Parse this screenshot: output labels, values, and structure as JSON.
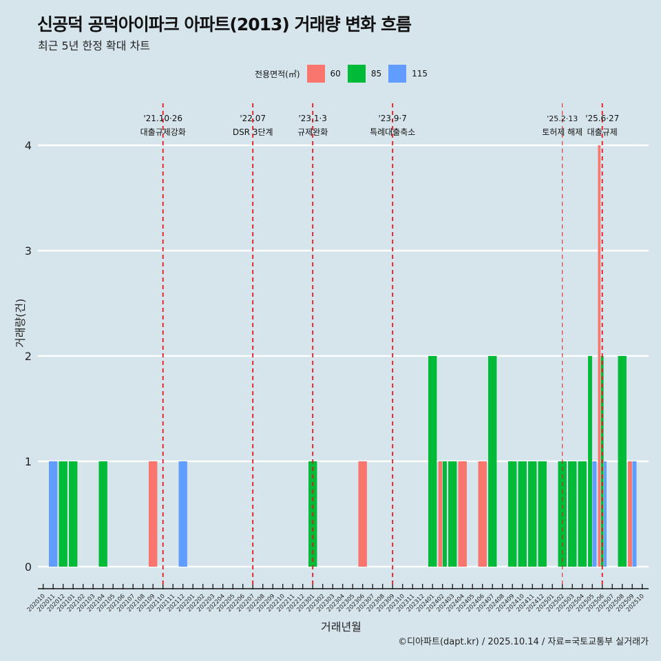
{
  "title": "신공덕 공덕아이파크 아파트(2013) 거래량 변화 흐름",
  "subtitle": "최근 5년 한정 확대 차트",
  "caption": "©디아파트(dapt.kr) / 2025.10.14 / 자료=국토교통부 실거래가",
  "chart_data": {
    "type": "bar",
    "xlabel": "거래년월",
    "ylabel": "거래량(건)",
    "ylim": [
      0,
      4
    ],
    "yticks": [
      "0",
      "1",
      "2",
      "3",
      "4"
    ],
    "legend": {
      "title": "전용면적(㎡)",
      "position": "top",
      "entries": [
        {
          "name": "60",
          "color": "#f8766d"
        },
        {
          "name": "85",
          "color": "#00ba38"
        },
        {
          "name": "115",
          "color": "#619cff"
        }
      ]
    },
    "months": [
      "202010",
      "202011",
      "202012",
      "202101",
      "202102",
      "202103",
      "202104",
      "202105",
      "202106",
      "202107",
      "202108",
      "202109",
      "202110",
      "202111",
      "202112",
      "202201",
      "202202",
      "202203",
      "202204",
      "202205",
      "202206",
      "202207",
      "202208",
      "202209",
      "202210",
      "202211",
      "202212",
      "202301",
      "202302",
      "202303",
      "202304",
      "202305",
      "202306",
      "202307",
      "202308",
      "202309",
      "202310",
      "202311",
      "202312",
      "202401",
      "202402",
      "202403",
      "202404",
      "202405",
      "202406",
      "202407",
      "202408",
      "202409",
      "202410",
      "202411",
      "202412",
      "202501",
      "202502",
      "202503",
      "202504",
      "202505",
      "202506",
      "202507",
      "202508",
      "202509",
      "202510"
    ],
    "bars": [
      {
        "month": "202011",
        "area": "115",
        "count": 1
      },
      {
        "month": "202012",
        "area": "85",
        "count": 1
      },
      {
        "month": "202101",
        "area": "85",
        "count": 1
      },
      {
        "month": "202104",
        "area": "85",
        "count": 1
      },
      {
        "month": "202109",
        "area": "60",
        "count": 1
      },
      {
        "month": "202112",
        "area": "115",
        "count": 1
      },
      {
        "month": "202301",
        "area": "85",
        "count": 1
      },
      {
        "month": "202306",
        "area": "60",
        "count": 1
      },
      {
        "month": "202401",
        "area": "85",
        "count": 2
      },
      {
        "month": "202402",
        "area": "60",
        "count": 1
      },
      {
        "month": "202402",
        "area": "85",
        "count": 1
      },
      {
        "month": "202403",
        "area": "85",
        "count": 1
      },
      {
        "month": "202404",
        "area": "60",
        "count": 1
      },
      {
        "month": "202406",
        "area": "60",
        "count": 1
      },
      {
        "month": "202407",
        "area": "85",
        "count": 2
      },
      {
        "month": "202409",
        "area": "85",
        "count": 1
      },
      {
        "month": "202410",
        "area": "85",
        "count": 1
      },
      {
        "month": "202411",
        "area": "85",
        "count": 1
      },
      {
        "month": "202412",
        "area": "85",
        "count": 1
      },
      {
        "month": "202502",
        "area": "85",
        "count": 1
      },
      {
        "month": "202503",
        "area": "85",
        "count": 1
      },
      {
        "month": "202504",
        "area": "85",
        "count": 1
      },
      {
        "month": "202505",
        "area": "85",
        "count": 2
      },
      {
        "month": "202505",
        "area": "115",
        "count": 1
      },
      {
        "month": "202506",
        "area": "60",
        "count": 4
      },
      {
        "month": "202506",
        "area": "85",
        "count": 2
      },
      {
        "month": "202506",
        "area": "115",
        "count": 1
      },
      {
        "month": "202508",
        "area": "85",
        "count": 2
      },
      {
        "month": "202509",
        "area": "60",
        "count": 1
      },
      {
        "month": "202509",
        "area": "115",
        "count": 1
      }
    ],
    "annotations": [
      {
        "month": "202110",
        "date": "'21.10·26",
        "label": "대출규제강화",
        "thin": false
      },
      {
        "month": "202207",
        "date": "'22.07",
        "label": "DSR 3단계",
        "thin": false
      },
      {
        "month": "202301",
        "date": "'23.1·3",
        "label": "규제완화",
        "thin": false
      },
      {
        "month": "202309",
        "date": "'23.9·7",
        "label": "특례대출축소",
        "thin": false
      },
      {
        "month": "202502",
        "date": "'25.2·13",
        "label": "토허제 해제",
        "thin": true
      },
      {
        "month": "202506",
        "date": "'25.6·27",
        "label": "대출규제",
        "thin": false
      }
    ]
  }
}
